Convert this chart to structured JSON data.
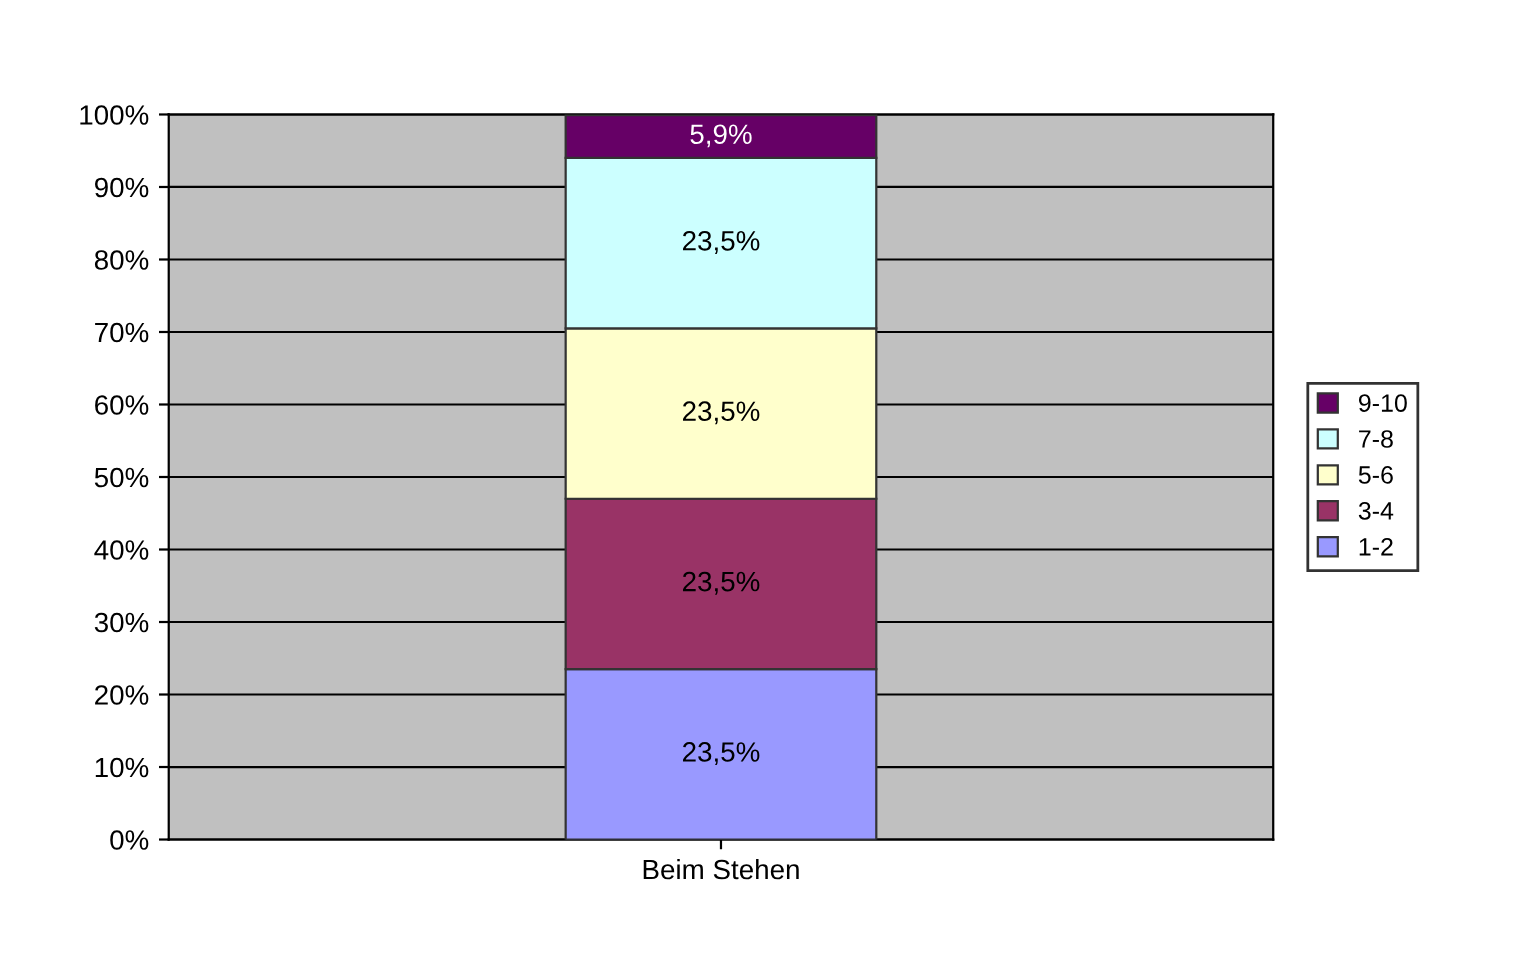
{
  "chart_data": {
    "type": "bar",
    "stacked": true,
    "categories": [
      "Beim Stehen"
    ],
    "series": [
      {
        "name": "1-2",
        "color": "#9999ff",
        "values": [
          23.5
        ],
        "value_labels": [
          "23,5%"
        ]
      },
      {
        "name": "3-4",
        "color": "#993366",
        "values": [
          23.5
        ],
        "value_labels": [
          "23,5%"
        ]
      },
      {
        "name": "5-6",
        "color": "#ffffcc",
        "values": [
          23.5
        ],
        "value_labels": [
          "23,5%"
        ]
      },
      {
        "name": "7-8",
        "color": "#ccffff",
        "values": [
          23.5
        ],
        "value_labels": [
          "23,5%"
        ]
      },
      {
        "name": "9-10",
        "color": "#660066",
        "values": [
          5.9
        ],
        "value_labels": [
          "5,9%"
        ]
      }
    ],
    "ylim": [
      0,
      100
    ],
    "yticks": [
      {
        "value": 0,
        "label": "0%"
      },
      {
        "value": 10,
        "label": "10%"
      },
      {
        "value": 20,
        "label": "20%"
      },
      {
        "value": 30,
        "label": "30%"
      },
      {
        "value": 40,
        "label": "40%"
      },
      {
        "value": 50,
        "label": "50%"
      },
      {
        "value": 60,
        "label": "60%"
      },
      {
        "value": 70,
        "label": "70%"
      },
      {
        "value": 80,
        "label": "80%"
      },
      {
        "value": 90,
        "label": "90%"
      },
      {
        "value": 100,
        "label": "100%"
      }
    ],
    "grid": "y",
    "legend": "right"
  }
}
